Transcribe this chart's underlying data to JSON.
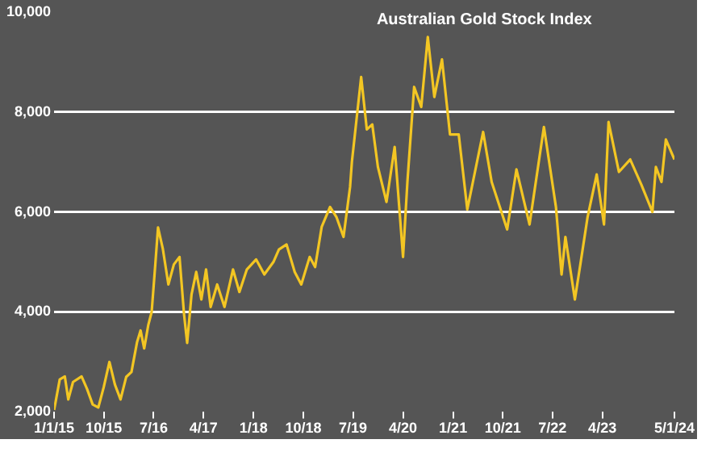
{
  "chart_data": {
    "type": "line",
    "title": "Australian Gold Stock Index",
    "x": [
      "2015-01-01",
      "2015-02-01",
      "2015-03-01",
      "2015-03-20",
      "2015-04-15",
      "2015-06-01",
      "2015-07-01",
      "2015-08-01",
      "2015-09-01",
      "2015-10-01",
      "2015-11-01",
      "2015-12-01",
      "2016-01-01",
      "2016-02-01",
      "2016-03-01",
      "2016-04-01",
      "2016-04-20",
      "2016-05-10",
      "2016-06-01",
      "2016-06-20",
      "2016-07-10",
      "2016-07-25",
      "2016-08-20",
      "2016-09-20",
      "2016-10-20",
      "2016-11-20",
      "2016-12-15",
      "2017-01-01",
      "2017-01-25",
      "2017-02-20",
      "2017-03-20",
      "2017-04-15",
      "2017-05-10",
      "2017-06-15",
      "2017-07-25",
      "2017-09-10",
      "2017-10-15",
      "2017-11-25",
      "2018-01-15",
      "2018-03-01",
      "2018-04-20",
      "2018-05-20",
      "2018-07-01",
      "2018-08-15",
      "2018-09-20",
      "2018-11-05",
      "2018-12-05",
      "2019-01-10",
      "2019-02-25",
      "2019-04-01",
      "2019-05-10",
      "2019-06-15",
      "2019-06-25",
      "2019-08-15",
      "2019-09-15",
      "2019-10-15",
      "2019-11-15",
      "2020-01-01",
      "2020-02-15",
      "2020-04-01",
      "2020-04-25",
      "2020-06-01",
      "2020-07-10",
      "2020-08-15",
      "2020-09-20",
      "2020-11-01",
      "2020-12-15",
      "2021-02-01",
      "2021-03-20",
      "2021-06-15",
      "2021-08-01",
      "2021-10-25",
      "2021-12-15",
      "2022-02-25",
      "2022-05-15",
      "2022-07-20",
      "2022-08-20",
      "2022-09-10",
      "2022-11-01",
      "2022-12-01",
      "2023-01-10",
      "2023-03-01",
      "2023-04-10",
      "2023-05-05",
      "2023-07-01",
      "2023-09-01",
      "2023-11-01",
      "2024-01-01",
      "2024-01-20",
      "2024-02-20",
      "2024-03-15",
      "2024-05-01"
    ],
    "values": [
      2040,
      2650,
      2710,
      2250,
      2600,
      2710,
      2460,
      2150,
      2090,
      2500,
      3000,
      2550,
      2250,
      2700,
      2800,
      3400,
      3630,
      3270,
      3730,
      4000,
      4950,
      5690,
      5270,
      4550,
      4950,
      5100,
      3950,
      3380,
      4350,
      4800,
      4250,
      4850,
      4100,
      4550,
      4100,
      4850,
      4400,
      4850,
      5050,
      4750,
      5000,
      5250,
      5350,
      4800,
      4550,
      5100,
      4900,
      5700,
      6100,
      5900,
      5500,
      6500,
      7000,
      8700,
      7650,
      7750,
      6900,
      6200,
      7300,
      5100,
      6600,
      8500,
      8100,
      9500,
      8300,
      9050,
      7550,
      7550,
      6050,
      7600,
      6600,
      5650,
      6850,
      5750,
      7700,
      6100,
      4750,
      5500,
      4250,
      4950,
      5900,
      6750,
      5750,
      7800,
      6800,
      7050,
      6550,
      6000,
      6900,
      6600,
      7450,
      7050
    ],
    "color": "#f3c623",
    "ylim": [
      2000,
      10000
    ],
    "yticks": [
      {
        "value": 2000,
        "label": "2,000"
      },
      {
        "value": 4000,
        "label": "4,000"
      },
      {
        "value": 6000,
        "label": "6,000"
      },
      {
        "value": 8000,
        "label": "8,000"
      },
      {
        "value": 10000,
        "label": "10,000"
      }
    ],
    "xlim": [
      "2015-01-01",
      "2024-05-01"
    ],
    "xticks": [
      {
        "value": "2015-01-01",
        "label": "1/1/15"
      },
      {
        "value": "2015-10-01",
        "label": "10/15"
      },
      {
        "value": "2016-07-01",
        "label": "7/16"
      },
      {
        "value": "2017-04-01",
        "label": "4/17"
      },
      {
        "value": "2018-01-01",
        "label": "1/18"
      },
      {
        "value": "2018-10-01",
        "label": "10/18"
      },
      {
        "value": "2019-07-01",
        "label": "7/19"
      },
      {
        "value": "2020-04-01",
        "label": "4/20"
      },
      {
        "value": "2021-01-01",
        "label": "1/21"
      },
      {
        "value": "2021-10-01",
        "label": "10/21"
      },
      {
        "value": "2022-07-01",
        "label": "7/22"
      },
      {
        "value": "2023-04-01",
        "label": "4/23"
      },
      {
        "value": "2024-05-01",
        "label": "5/1/24"
      }
    ],
    "grid": "y",
    "legend": false,
    "marker": "none",
    "line_style": "solid"
  }
}
